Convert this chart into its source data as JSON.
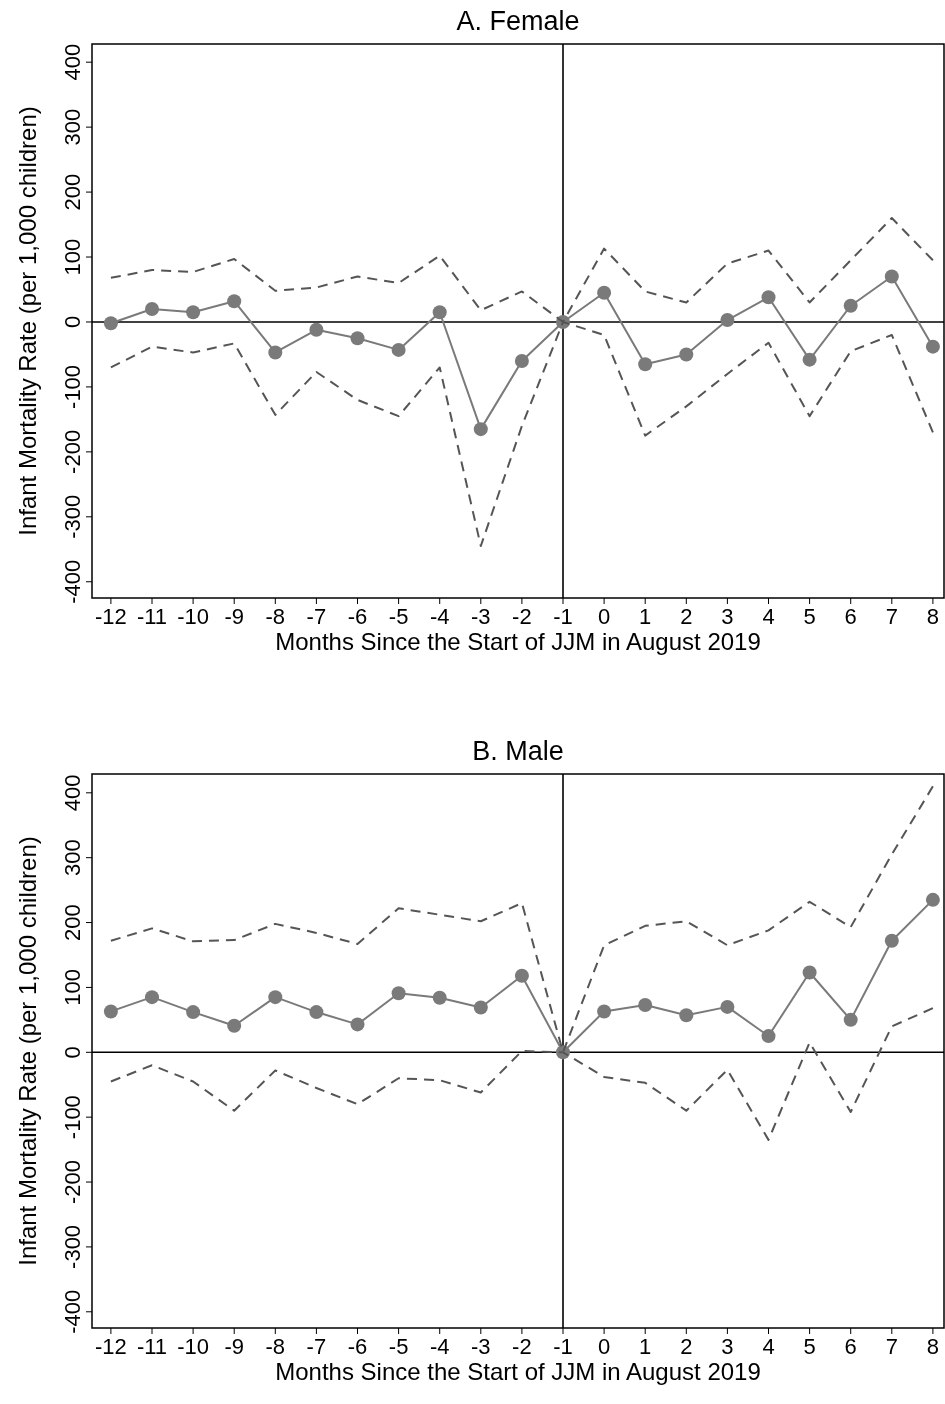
{
  "chart_data": [
    {
      "type": "line",
      "title": "A. Female",
      "xlabel": "Months Since the Start of JJM in August 2019",
      "ylabel": "Infant Mortality Rate (per 1,000 children)",
      "x": [
        -12,
        -11,
        -10,
        -9,
        -8,
        -7,
        -6,
        -5,
        -4,
        -3,
        -2,
        -1,
        0,
        1,
        2,
        3,
        4,
        5,
        6,
        7,
        8
      ],
      "xlim": [
        -12.46,
        8.27
      ],
      "xticks": [
        -12,
        -11,
        -10,
        -9,
        -8,
        -7,
        -6,
        -5,
        -4,
        -3,
        -2,
        -1,
        0,
        1,
        2,
        3,
        4,
        5,
        6,
        7,
        8
      ],
      "ylim": [
        -425,
        428
      ],
      "yticks": [
        -400,
        -300,
        -200,
        -100,
        0,
        100,
        200,
        300,
        400
      ],
      "grid": false,
      "ref_lines": [
        {
          "axis": "x",
          "value": -1,
          "color": "#000000"
        },
        {
          "axis": "y",
          "value": 0,
          "color": "#000000"
        }
      ],
      "series": [
        {
          "color": "#7a7a7a",
          "marker": "circle",
          "line_style": "solid",
          "values": [
            -2,
            20,
            15,
            32,
            -47,
            -12,
            -25,
            -43,
            15,
            -165,
            -60,
            0,
            45,
            -65,
            -50,
            3,
            38,
            -58,
            25,
            70,
            -38
          ]
        },
        {
          "color": "#555555",
          "marker": "none",
          "line_style": "dashed",
          "values": [
            68,
            80,
            77,
            97,
            48,
            53,
            70,
            60,
            102,
            18,
            47,
            0,
            113,
            47,
            30,
            90,
            110,
            30,
            95,
            160,
            95
          ]
        },
        {
          "color": "#555555",
          "marker": "none",
          "line_style": "dashed",
          "values": [
            -70,
            -38,
            -47,
            -33,
            -143,
            -77,
            -120,
            -145,
            -70,
            -345,
            -160,
            0,
            -20,
            -175,
            -130,
            -80,
            -32,
            -145,
            -45,
            -20,
            -170
          ]
        }
      ]
    },
    {
      "type": "line",
      "title": "B. Male",
      "xlabel": "Months Since the Start of JJM in August 2019",
      "ylabel": "Infant Mortality Rate (per 1,000 children)",
      "x": [
        -12,
        -11,
        -10,
        -9,
        -8,
        -7,
        -6,
        -5,
        -4,
        -3,
        -2,
        -1,
        0,
        1,
        2,
        3,
        4,
        5,
        6,
        7,
        8
      ],
      "xlim": [
        -12.46,
        8.27
      ],
      "xticks": [
        -12,
        -11,
        -10,
        -9,
        -8,
        -7,
        -6,
        -5,
        -4,
        -3,
        -2,
        -1,
        0,
        1,
        2,
        3,
        4,
        5,
        6,
        7,
        8
      ],
      "ylim": [
        -425,
        429
      ],
      "yticks": [
        -400,
        -300,
        -200,
        -100,
        0,
        100,
        200,
        300,
        400
      ],
      "grid": false,
      "ref_lines": [
        {
          "axis": "x",
          "value": -1,
          "color": "#000000"
        },
        {
          "axis": "y",
          "value": 0,
          "color": "#000000"
        }
      ],
      "series": [
        {
          "color": "#7a7a7a",
          "marker": "circle",
          "line_style": "solid",
          "values": [
            63,
            85,
            62,
            41,
            85,
            62,
            43,
            91,
            84,
            69,
            118,
            0,
            63,
            73,
            57,
            70,
            25,
            123,
            50,
            172,
            235
          ]
        },
        {
          "color": "#555555",
          "marker": "none",
          "line_style": "dashed",
          "values": [
            172,
            191,
            171,
            173,
            198,
            184,
            167,
            222,
            212,
            202,
            230,
            0,
            165,
            195,
            202,
            165,
            188,
            232,
            193,
            305,
            410
          ]
        },
        {
          "color": "#555555",
          "marker": "none",
          "line_style": "dashed",
          "values": [
            -45,
            -20,
            -45,
            -90,
            -28,
            -55,
            -80,
            -40,
            -43,
            -62,
            2,
            0,
            -38,
            -47,
            -90,
            -27,
            -135,
            15,
            -92,
            40,
            68
          ]
        }
      ]
    }
  ]
}
